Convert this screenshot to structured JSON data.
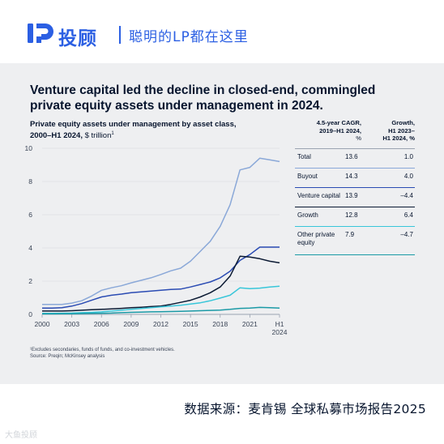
{
  "header": {
    "brand": "投顾",
    "slogan": "聪明的LP都在这里"
  },
  "headline": "Venture capital led the decline in closed-end, commingled private equity assets under management in 2024.",
  "chart_title": {
    "bold": "Private equity assets under management by asset class,",
    "line2_bold": "2000–H1 2024,",
    "unit": " $ trillion",
    "mark": "1"
  },
  "table": {
    "col_cagr": {
      "l1": "4.5-year CAGR,",
      "l2": "2019–H1 2024,",
      "l3": "%"
    },
    "col_growth": {
      "l1": "Growth,",
      "l2": "H1 2023–",
      "l3": "H1 2024, %"
    },
    "rows": [
      {
        "label": "Total",
        "cagr": "13.6",
        "growth": "1.0",
        "color": "#8aa8d8"
      },
      {
        "label": "Buyout",
        "cagr": "14.3",
        "growth": "4.0",
        "color": "#2a4bb3"
      },
      {
        "label": "Venture capital",
        "cagr": "13.9",
        "growth": "–4.4",
        "color": "#0b1a33"
      },
      {
        "label": "Growth",
        "cagr": "12.8",
        "growth": "6.4",
        "color": "#38c6d9"
      },
      {
        "label": "Other private equity",
        "cagr": "7.9",
        "growth": "–4.7",
        "color": "#1b9aa6"
      }
    ]
  },
  "footnote": {
    "l1": "¹Excludes secondaries, funds of funds, and co-investment vehicles.",
    "l2": "Source: Preqin; McKinsey analysis"
  },
  "source": "数据来源：麦肯锡 全球私募市场报告2025",
  "watermark": "大鱼投顾",
  "chart_data": {
    "type": "line",
    "x": [
      2000,
      2001,
      2002,
      2003,
      2004,
      2005,
      2006,
      2007,
      2008,
      2009,
      2010,
      2011,
      2012,
      2013,
      2014,
      2015,
      2016,
      2017,
      2018,
      2019,
      2020,
      2021,
      2022,
      2023,
      2024
    ],
    "xticks": [
      "2000",
      "2003",
      "2006",
      "2009",
      "2012",
      "2015",
      "2018",
      "2021"
    ],
    "xtick_last": {
      "l1": "H1",
      "l2": "2024"
    },
    "ylim": [
      0,
      10
    ],
    "yticks": [
      0,
      2,
      4,
      6,
      8,
      10
    ],
    "series": [
      {
        "color": "#8aa8d8",
        "values": [
          0.6,
          0.6,
          0.6,
          0.68,
          0.82,
          1.1,
          1.45,
          1.6,
          1.72,
          1.9,
          2.05,
          2.2,
          2.4,
          2.62,
          2.78,
          3.2,
          3.8,
          4.4,
          5.3,
          6.6,
          8.7,
          8.85,
          9.4,
          9.3,
          9.2
        ]
      },
      {
        "color": "#2a4bb3",
        "values": [
          0.38,
          0.38,
          0.4,
          0.5,
          0.65,
          0.85,
          1.05,
          1.15,
          1.22,
          1.3,
          1.35,
          1.4,
          1.45,
          1.5,
          1.52,
          1.65,
          1.8,
          1.95,
          2.2,
          2.6,
          3.25,
          3.6,
          4.05,
          4.05,
          4.05
        ]
      },
      {
        "color": "#0b1a33",
        "values": [
          0.2,
          0.2,
          0.2,
          0.22,
          0.25,
          0.28,
          0.3,
          0.33,
          0.36,
          0.4,
          0.43,
          0.47,
          0.5,
          0.6,
          0.72,
          0.85,
          1.05,
          1.3,
          1.65,
          2.3,
          3.5,
          3.45,
          3.35,
          3.2,
          3.1
        ]
      },
      {
        "color": "#38c6d9",
        "values": [
          0.06,
          0.06,
          0.07,
          0.08,
          0.1,
          0.12,
          0.15,
          0.2,
          0.25,
          0.3,
          0.35,
          0.4,
          0.45,
          0.5,
          0.55,
          0.62,
          0.7,
          0.82,
          0.98,
          1.15,
          1.6,
          1.55,
          1.58,
          1.65,
          1.7
        ]
      },
      {
        "color": "#1b9aa6",
        "values": [
          0.03,
          0.03,
          0.04,
          0.04,
          0.05,
          0.06,
          0.07,
          0.08,
          0.1,
          0.12,
          0.13,
          0.15,
          0.16,
          0.17,
          0.18,
          0.2,
          0.22,
          0.24,
          0.26,
          0.3,
          0.36,
          0.38,
          0.42,
          0.4,
          0.38
        ]
      }
    ]
  }
}
